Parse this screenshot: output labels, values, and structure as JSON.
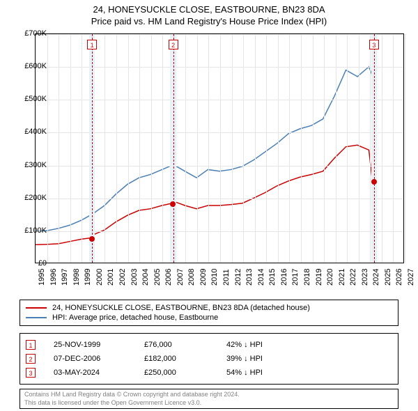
{
  "title": {
    "line1": "24, HONEYSUCKLE CLOSE, EASTBOURNE, BN23 8DA",
    "line2": "Price paid vs. HM Land Registry's House Price Index (HPI)"
  },
  "chart": {
    "type": "line",
    "background_color": "#ffffff",
    "grid_color": "#e5e5e5",
    "border_color": "#000000",
    "xlim": [
      1995,
      2027
    ],
    "ylim": [
      0,
      700000
    ],
    "ytick_step": 100000,
    "ytick_labels": [
      "£0",
      "£100K",
      "£200K",
      "£300K",
      "£400K",
      "£500K",
      "£600K",
      "£700K"
    ],
    "xtick_step": 1,
    "xtick_labels": [
      "1995",
      "1996",
      "1997",
      "1998",
      "1999",
      "2000",
      "2001",
      "2002",
      "2003",
      "2004",
      "2005",
      "2006",
      "2007",
      "2008",
      "2009",
      "2010",
      "2011",
      "2012",
      "2013",
      "2014",
      "2015",
      "2016",
      "2017",
      "2018",
      "2019",
      "2020",
      "2021",
      "2022",
      "2023",
      "2024",
      "2025",
      "2026",
      "2027"
    ],
    "tick_fontsize": 11,
    "event_band_color": "#e8f0f8",
    "event_line_color": "#cc0000",
    "event_line_dash": "3,3",
    "series": [
      {
        "name": "price_paid",
        "label": "24, HONEYSUCKLE CLOSE, EASTBOURNE, BN23 8DA (detached house)",
        "color": "#cc0000",
        "line_width": 1.5,
        "x": [
          1995,
          1996,
          1997,
          1998,
          1999,
          1999.9,
          2000,
          2001,
          2002,
          2003,
          2004,
          2005,
          2006,
          2006.9,
          2007,
          2008,
          2009,
          2010,
          2011,
          2012,
          2013,
          2014,
          2015,
          2016,
          2017,
          2018,
          2019,
          2020,
          2021,
          2022,
          2023,
          2024,
          2024.3
        ],
        "y": [
          55000,
          56000,
          58000,
          65000,
          72000,
          76000,
          85000,
          100000,
          125000,
          145000,
          160000,
          165000,
          175000,
          182000,
          188000,
          175000,
          165000,
          175000,
          175000,
          178000,
          182000,
          198000,
          215000,
          235000,
          250000,
          262000,
          270000,
          280000,
          320000,
          355000,
          360000,
          345000,
          250000
        ],
        "points": [
          {
            "x": 1999.9,
            "y": 76000
          },
          {
            "x": 2006.9,
            "y": 182000
          },
          {
            "x": 2024.34,
            "y": 250000
          }
        ]
      },
      {
        "name": "hpi",
        "label": "HPI: Average price, detached house, Eastbourne",
        "color": "#4a7fb5",
        "line_width": 1.5,
        "x": [
          1995,
          1996,
          1997,
          1998,
          1999,
          2000,
          2001,
          2002,
          2003,
          2004,
          2005,
          2006,
          2007,
          2008,
          2009,
          2010,
          2011,
          2012,
          2013,
          2014,
          2015,
          2016,
          2017,
          2018,
          2019,
          2020,
          2021,
          2022,
          2023,
          2024,
          2024.5
        ],
        "y": [
          95000,
          98000,
          105000,
          115000,
          130000,
          150000,
          175000,
          210000,
          240000,
          260000,
          270000,
          285000,
          300000,
          280000,
          260000,
          285000,
          280000,
          285000,
          295000,
          315000,
          340000,
          365000,
          395000,
          410000,
          420000,
          440000,
          510000,
          590000,
          570000,
          600000,
          555000
        ]
      }
    ],
    "events": [
      {
        "n": "1",
        "x": 1999.9,
        "band_width_years": 0.5
      },
      {
        "n": "2",
        "x": 2006.93,
        "band_width_years": 0.5
      },
      {
        "n": "3",
        "x": 2024.34,
        "band_width_years": 0.5
      }
    ]
  },
  "legend": {
    "items": [
      {
        "color": "#cc0000",
        "label": "24, HONEYSUCKLE CLOSE, EASTBOURNE, BN23 8DA (detached house)"
      },
      {
        "color": "#4a7fb5",
        "label": "HPI: Average price, detached house, Eastbourne"
      }
    ]
  },
  "events_table": {
    "rows": [
      {
        "n": "1",
        "date": "25-NOV-1999",
        "price": "£76,000",
        "hpi": "42% ↓ HPI"
      },
      {
        "n": "2",
        "date": "07-DEC-2006",
        "price": "£182,000",
        "hpi": "39% ↓ HPI"
      },
      {
        "n": "3",
        "date": "03-MAY-2024",
        "price": "£250,000",
        "hpi": "54% ↓ HPI"
      }
    ]
  },
  "footnote": {
    "line1": "Contains HM Land Registry data © Crown copyright and database right 2024.",
    "line2": "This data is licensed under the Open Government Licence v3.0."
  }
}
